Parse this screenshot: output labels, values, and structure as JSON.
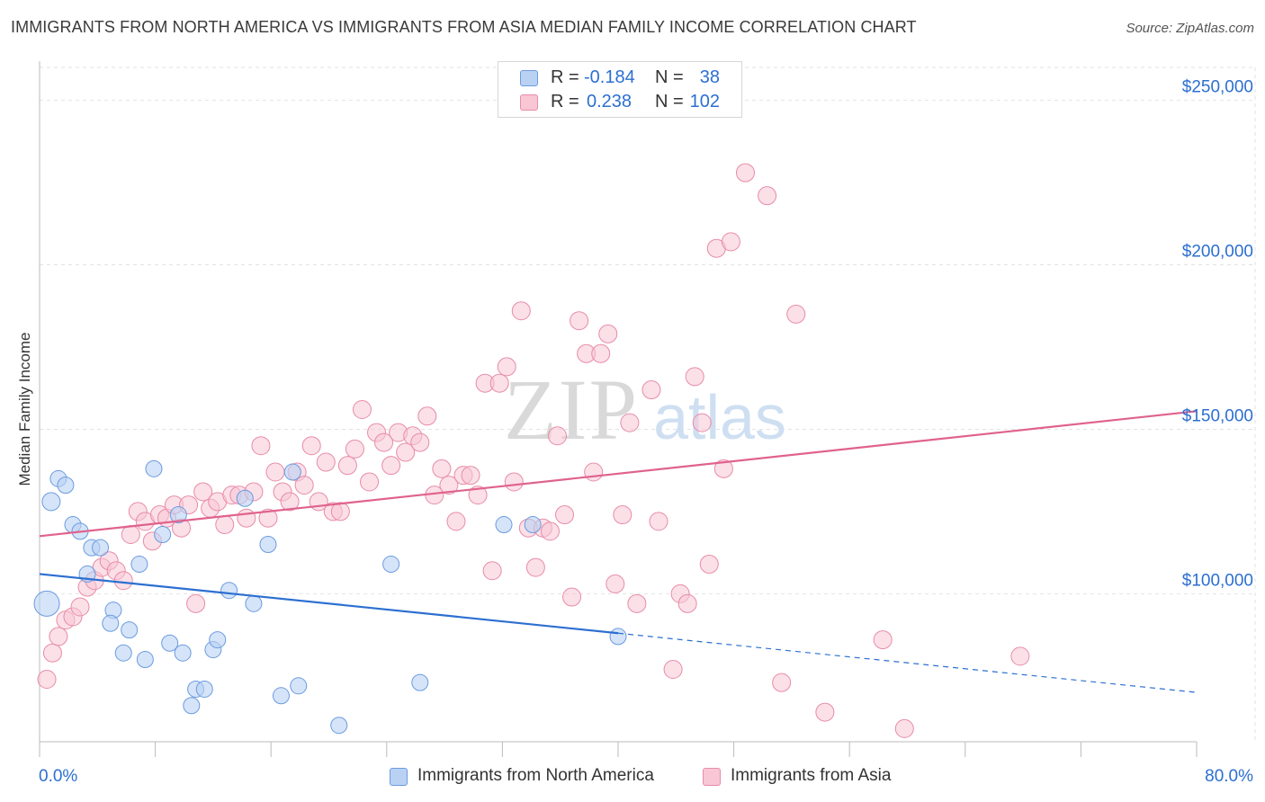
{
  "header": {
    "title": "IMMIGRANTS FROM NORTH AMERICA VS IMMIGRANTS FROM ASIA MEDIAN FAMILY INCOME CORRELATION CHART",
    "source": "Source: ZipAtlas.com"
  },
  "stats": {
    "r_label": "R =",
    "n_label": "N =",
    "rows": [
      {
        "r": "-0.184",
        "n": "38"
      },
      {
        "r": "0.238",
        "n": "102"
      }
    ]
  },
  "watermark": {
    "zip": "ZIP",
    "atlas": "atlas"
  },
  "colors": {
    "north_america_fill": "#b9d2f4",
    "north_america_stroke": "#6b9be0",
    "north_america_line": "#2c6fd1",
    "asia_fill": "#f8c6d5",
    "asia_stroke": "#e88ba8",
    "asia_line": "#e0628d",
    "axis_value": "#2c6fd1"
  },
  "chart_data": {
    "type": "scatter",
    "title": "IMMIGRANTS FROM NORTH AMERICA VS IMMIGRANTS FROM ASIA MEDIAN FAMILY INCOME CORRELATION CHART",
    "xlabel": "",
    "ylabel": "Median Family Income",
    "xlim": [
      0,
      80
    ],
    "ylim": [
      55000,
      260000
    ],
    "x_tick_labels": [
      "0.0%",
      "80.0%"
    ],
    "y_ticks": [
      100000,
      150000,
      200000,
      250000
    ],
    "y_tick_labels": [
      "$100,000",
      "$150,000",
      "$200,000",
      "$250,000"
    ],
    "grid": "horizontal dashed",
    "legend_position": "bottom",
    "series": [
      {
        "name": "Immigrants from North America",
        "r": -0.184,
        "n": 38,
        "trend": {
          "x0": 0,
          "y0": 106000,
          "x1": 40,
          "y1": 88000,
          "x_dash_end": 80,
          "y_dash_end": 70000
        },
        "points": [
          [
            0.5,
            97000,
            14
          ],
          [
            0.8,
            128000,
            10
          ],
          [
            1.3,
            135000,
            9
          ],
          [
            1.8,
            133000,
            9
          ],
          [
            2.3,
            121000,
            9
          ],
          [
            2.8,
            119000,
            9
          ],
          [
            3.3,
            106000,
            9
          ],
          [
            3.6,
            114000,
            9
          ],
          [
            4.2,
            114000,
            9
          ],
          [
            5.1,
            95000,
            9
          ],
          [
            4.9,
            91000,
            9
          ],
          [
            5.8,
            82000,
            9
          ],
          [
            6.2,
            89000,
            9
          ],
          [
            6.9,
            109000,
            9
          ],
          [
            7.3,
            80000,
            9
          ],
          [
            7.9,
            138000,
            9
          ],
          [
            8.5,
            118000,
            9
          ],
          [
            9.0,
            85000,
            9
          ],
          [
            9.6,
            124000,
            9
          ],
          [
            9.9,
            82000,
            9
          ],
          [
            10.5,
            66000,
            9
          ],
          [
            10.8,
            71000,
            9
          ],
          [
            11.4,
            71000,
            9
          ],
          [
            12.0,
            83000,
            9
          ],
          [
            12.3,
            86000,
            9
          ],
          [
            13.1,
            101000,
            9
          ],
          [
            14.2,
            129000,
            9
          ],
          [
            14.8,
            97000,
            9
          ],
          [
            15.8,
            115000,
            9
          ],
          [
            16.7,
            69000,
            9
          ],
          [
            17.5,
            137000,
            9
          ],
          [
            17.9,
            72000,
            9
          ],
          [
            20.7,
            60000,
            9
          ],
          [
            24.3,
            109000,
            9
          ],
          [
            26.3,
            73000,
            9
          ],
          [
            32.1,
            121000,
            9
          ],
          [
            34.1,
            121000,
            9
          ],
          [
            40.0,
            87000,
            9
          ]
        ]
      },
      {
        "name": "Immigrants from Asia",
        "r": 0.238,
        "n": 102,
        "trend": {
          "x0": 0,
          "y0": 117500,
          "x1": 80,
          "y1": 155500
        },
        "points": [
          [
            0.5,
            74000,
            10
          ],
          [
            0.9,
            82000,
            10
          ],
          [
            1.3,
            87000,
            10
          ],
          [
            1.8,
            92000,
            10
          ],
          [
            2.3,
            93000,
            10
          ],
          [
            2.8,
            96000,
            10
          ],
          [
            3.3,
            102000,
            10
          ],
          [
            3.8,
            104000,
            10
          ],
          [
            4.3,
            108000,
            10
          ],
          [
            4.8,
            110000,
            10
          ],
          [
            5.3,
            107000,
            10
          ],
          [
            5.8,
            104000,
            10
          ],
          [
            6.3,
            118000,
            10
          ],
          [
            6.8,
            125000,
            10
          ],
          [
            7.3,
            122000,
            10
          ],
          [
            7.8,
            116000,
            10
          ],
          [
            8.3,
            124000,
            10
          ],
          [
            8.8,
            123000,
            10
          ],
          [
            9.3,
            127000,
            10
          ],
          [
            9.8,
            120000,
            10
          ],
          [
            10.3,
            127000,
            10
          ],
          [
            10.8,
            97000,
            10
          ],
          [
            11.3,
            131000,
            10
          ],
          [
            11.8,
            126000,
            10
          ],
          [
            12.3,
            128000,
            10
          ],
          [
            12.8,
            121000,
            10
          ],
          [
            13.3,
            130000,
            10
          ],
          [
            13.8,
            130000,
            10
          ],
          [
            14.3,
            123000,
            10
          ],
          [
            14.8,
            131000,
            10
          ],
          [
            15.3,
            145000,
            10
          ],
          [
            15.8,
            123000,
            10
          ],
          [
            16.3,
            137000,
            10
          ],
          [
            16.8,
            131000,
            10
          ],
          [
            17.3,
            128000,
            10
          ],
          [
            17.8,
            137000,
            10
          ],
          [
            18.3,
            133000,
            10
          ],
          [
            18.8,
            145000,
            10
          ],
          [
            19.3,
            128000,
            10
          ],
          [
            19.8,
            140000,
            10
          ],
          [
            20.3,
            125000,
            10
          ],
          [
            20.8,
            125000,
            10
          ],
          [
            21.3,
            139000,
            10
          ],
          [
            21.8,
            144000,
            10
          ],
          [
            22.3,
            156000,
            10
          ],
          [
            22.8,
            134000,
            10
          ],
          [
            23.3,
            149000,
            10
          ],
          [
            23.8,
            146000,
            10
          ],
          [
            24.3,
            139000,
            10
          ],
          [
            24.8,
            149000,
            10
          ],
          [
            25.3,
            143000,
            10
          ],
          [
            25.8,
            148000,
            10
          ],
          [
            26.3,
            146000,
            10
          ],
          [
            26.8,
            154000,
            10
          ],
          [
            27.3,
            130000,
            10
          ],
          [
            27.8,
            138000,
            10
          ],
          [
            28.3,
            133000,
            10
          ],
          [
            28.8,
            122000,
            10
          ],
          [
            29.3,
            136000,
            10
          ],
          [
            29.8,
            136000,
            10
          ],
          [
            30.3,
            130000,
            10
          ],
          [
            30.8,
            164000,
            10
          ],
          [
            31.3,
            107000,
            10
          ],
          [
            31.8,
            164000,
            10
          ],
          [
            32.3,
            169000,
            10
          ],
          [
            32.8,
            134000,
            10
          ],
          [
            33.3,
            186000,
            10
          ],
          [
            33.8,
            120000,
            10
          ],
          [
            34.3,
            108000,
            10
          ],
          [
            34.8,
            120000,
            10
          ],
          [
            35.3,
            119000,
            10
          ],
          [
            35.8,
            148000,
            10
          ],
          [
            36.3,
            124000,
            10
          ],
          [
            36.8,
            99000,
            10
          ],
          [
            37.3,
            183000,
            10
          ],
          [
            37.8,
            173000,
            10
          ],
          [
            38.3,
            137000,
            10
          ],
          [
            38.8,
            173000,
            10
          ],
          [
            39.3,
            179000,
            10
          ],
          [
            39.8,
            103000,
            10
          ],
          [
            40.3,
            124000,
            10
          ],
          [
            40.8,
            152000,
            10
          ],
          [
            41.3,
            97000,
            10
          ],
          [
            42.3,
            162000,
            10
          ],
          [
            42.8,
            122000,
            10
          ],
          [
            43.8,
            77000,
            10
          ],
          [
            44.3,
            100000,
            10
          ],
          [
            44.8,
            97000,
            10
          ],
          [
            45.3,
            166000,
            10
          ],
          [
            45.8,
            152000,
            10
          ],
          [
            46.3,
            109000,
            10
          ],
          [
            46.8,
            205000,
            10
          ],
          [
            47.3,
            138000,
            10
          ],
          [
            47.8,
            207000,
            10
          ],
          [
            48.8,
            228000,
            10
          ],
          [
            50.3,
            221000,
            10
          ],
          [
            51.3,
            73000,
            10
          ],
          [
            52.3,
            185000,
            10
          ],
          [
            54.3,
            64000,
            10
          ],
          [
            58.3,
            86000,
            10
          ],
          [
            59.8,
            59000,
            10
          ],
          [
            67.8,
            81000,
            10
          ]
        ]
      }
    ]
  },
  "legend": {
    "items": [
      {
        "label": "Immigrants from North America"
      },
      {
        "label": "Immigrants from Asia"
      }
    ]
  }
}
